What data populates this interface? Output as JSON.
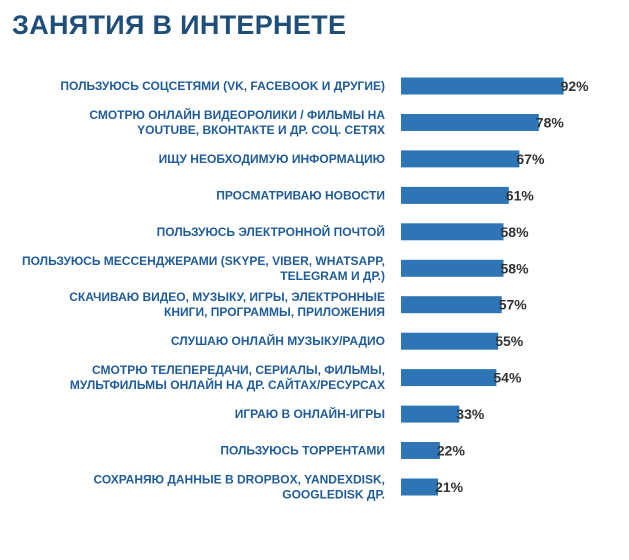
{
  "chart_data": {
    "type": "bar",
    "orientation": "horizontal",
    "title": "ЗАНЯТИЯ В ИНТЕРНЕТЕ",
    "categories": [
      [
        "ПОЛЬЗУЮСЬ СОЦСЕТЯМИ (VK, FACEBOOK И ДРУГИЕ)"
      ],
      [
        "СМОТРЮ  ОНЛАЙН ВИДЕОРОЛИКИ / ФИЛЬМЫ НА",
        "YOUTUBE, ВКОНТАКТЕ И ДР. СОЦ. СЕТЯХ"
      ],
      [
        "ИЩУ НЕОБХОДИМУЮ ИНФОРМАЦИЮ"
      ],
      [
        "ПРОСМАТРИВАЮ НОВОСТИ"
      ],
      [
        "ПОЛЬЗУЮСЬ ЭЛЕКТРОННОЙ ПОЧТОЙ"
      ],
      [
        "ПОЛЬЗУЮСЬ МЕССЕНДЖЕРАМИ  (SKYPE, VIBER, WHATSAPP,",
        "TELEGRAM И ДР.)"
      ],
      [
        "СКАЧИВАЮ ВИДЕО, МУЗЫКУ, ИГРЫ, ЭЛЕКТРОННЫЕ",
        "КНИГИ, ПРОГРАММЫ, ПРИЛОЖЕНИЯ"
      ],
      [
        "СЛУШАЮ ОНЛАЙН МУЗЫКУ/РАДИО"
      ],
      [
        "СМОТРЮ ТЕЛЕПЕРЕДАЧИ, СЕРИАЛЫ, ФИЛЬМЫ,",
        "МУЛЬТФИЛЬМЫ ОНЛАЙН НА ДР. САЙТАХ/РЕСУРСАХ"
      ],
      [
        "ИГРАЮ В ОНЛАЙН-ИГРЫ"
      ],
      [
        "ПОЛЬЗУЮСЬ ТОРРЕНТАМИ"
      ],
      [
        "СОХРАНЯЮ ДАННЫЕ В DROPBOX, YANDEXDISK,",
        "GOOGLEDISK ДР."
      ]
    ],
    "values": [
      92,
      78,
      67,
      61,
      58,
      58,
      57,
      55,
      54,
      33,
      22,
      21
    ],
    "value_suffix": "%",
    "bar_color": "#2e75b6",
    "xlim": [
      0,
      100
    ],
    "grid": false,
    "legend": "none"
  }
}
